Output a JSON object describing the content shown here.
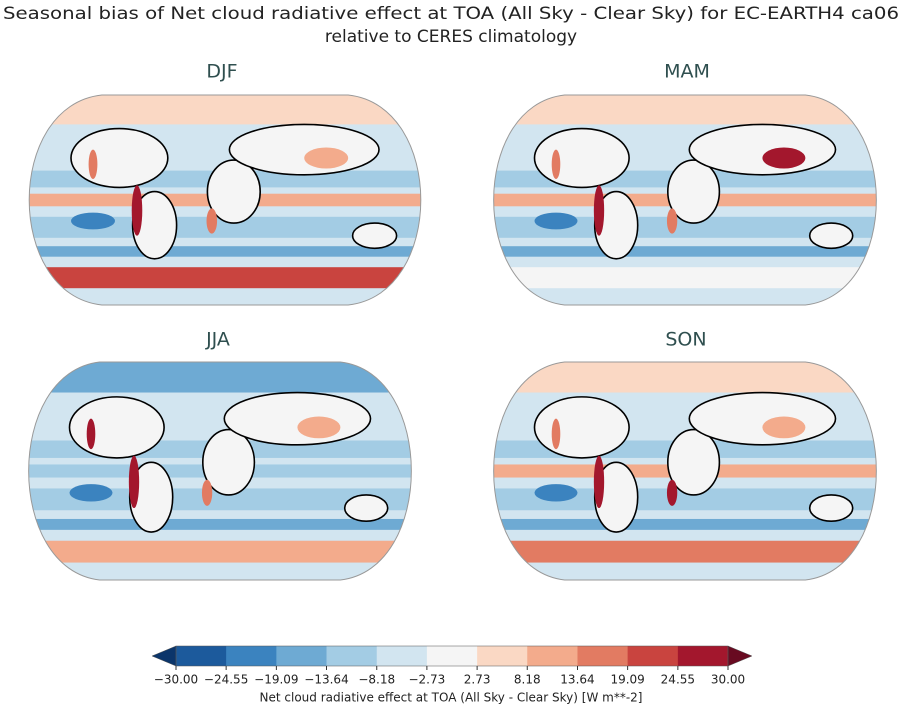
{
  "title_lines": [
    "Seasonal bias of Net cloud radiative effect at TOA (All Sky - Clear Sky) for EC-EARTH4 ca06",
    "relative to CERES climatology"
  ],
  "panels": [
    {
      "title": "DJF"
    },
    {
      "title": "MAM"
    },
    {
      "title": "JJA"
    },
    {
      "title": "SON"
    }
  ],
  "colorbar": {
    "label": "Net cloud radiative effect at TOA (All Sky - Clear Sky) [W m**-2]",
    "ticks": [
      {
        "value": -30,
        "label": "−30.00"
      },
      {
        "value": -24.55,
        "label": "−24.55"
      },
      {
        "value": -19.09,
        "label": "−19.09"
      },
      {
        "value": -13.64,
        "label": "−13.64"
      },
      {
        "value": -8.18,
        "label": "−8.18"
      },
      {
        "value": -2.73,
        "label": "−2.73"
      },
      {
        "value": 2.73,
        "label": "2.73"
      },
      {
        "value": 8.18,
        "label": "8.18"
      },
      {
        "value": 13.64,
        "label": "13.64"
      },
      {
        "value": 19.09,
        "label": "19.09"
      },
      {
        "value": 24.55,
        "label": "24.55"
      },
      {
        "value": 30,
        "label": "30.00"
      }
    ],
    "colors": [
      "#1c5a9c",
      "#3b83bf",
      "#6eaad3",
      "#a3cce4",
      "#d2e5f0",
      "#f5f5f5",
      "#fad8c4",
      "#f3ab8c",
      "#e27b62",
      "#c9443f",
      "#a3172d"
    ],
    "under_color": "#0b356a",
    "over_color": "#680a21"
  }
}
